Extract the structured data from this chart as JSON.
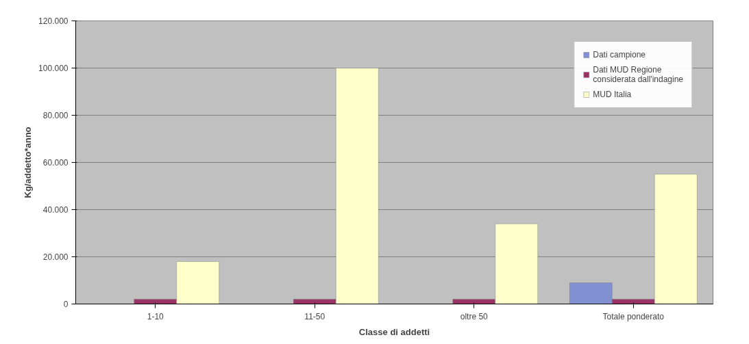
{
  "chart_data": {
    "type": "bar",
    "xlabel": "Classe di addetti",
    "ylabel": "Kg/addetto*anno",
    "categories": [
      "1-10",
      "11-50",
      "oltre 50",
      "Totale ponderato"
    ],
    "series": [
      {
        "name": "Dati campione",
        "color": "#8090d0",
        "values": [
          null,
          null,
          null,
          9000
        ]
      },
      {
        "name": "Dati MUD Regione\nconsiderata dall'indagine",
        "color": "#993366",
        "values": [
          2000,
          2000,
          2000,
          2000
        ]
      },
      {
        "name": "MUD Italia",
        "color": "#ffffcc",
        "values": [
          18000,
          100000,
          34000,
          55000
        ]
      }
    ],
    "ylim": [
      0,
      120000
    ],
    "yticks": [
      {
        "value": 0,
        "label": "0"
      },
      {
        "value": 20000,
        "label": "20.000"
      },
      {
        "value": 40000,
        "label": "40.000"
      },
      {
        "value": 60000,
        "label": "60.000"
      },
      {
        "value": 80000,
        "label": "80.000"
      },
      {
        "value": 100000,
        "label": "100.000"
      },
      {
        "value": 120000,
        "label": "120.000"
      }
    ],
    "grid": "y",
    "legend": "top right"
  }
}
